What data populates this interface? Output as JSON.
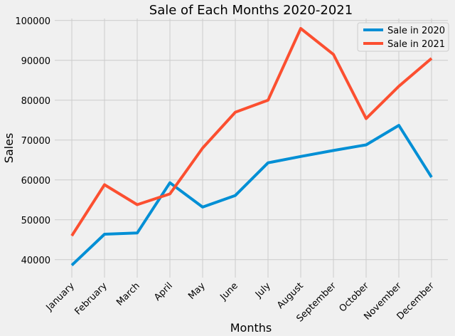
{
  "chart_data": {
    "type": "line",
    "title": "Sale of Each Months 2020-2021",
    "xlabel": "Months",
    "ylabel": "Sales",
    "categories": [
      "January",
      "February",
      "March",
      "April",
      "May",
      "June",
      "July",
      "August",
      "September",
      "October",
      "November",
      "December"
    ],
    "ylim": [
      35500,
      100500
    ],
    "yticks": [
      40000,
      50000,
      60000,
      70000,
      80000,
      90000,
      100000
    ],
    "grid": true,
    "legend_position": "top-right",
    "series": [
      {
        "name": "Sale in 2020",
        "color": "#008fd5",
        "values": [
          38600,
          46400,
          46700,
          59300,
          53200,
          56100,
          64300,
          65900,
          67400,
          68800,
          73700,
          60700
        ]
      },
      {
        "name": "Sale in 2021",
        "color": "#fc4f30",
        "values": [
          46000,
          58800,
          53800,
          56500,
          68000,
          77000,
          80000,
          98000,
          91500,
          75400,
          83500,
          90500
        ]
      }
    ]
  }
}
